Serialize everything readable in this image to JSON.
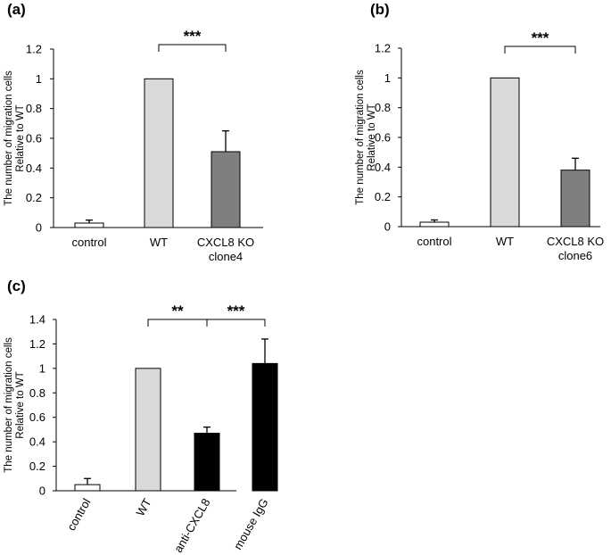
{
  "chart_data": [
    {
      "type": "bar",
      "panel_label": "(a)",
      "ylabel": [
        "The number of migration cells",
        "Relative to WT"
      ],
      "ylim": [
        0,
        1.2
      ],
      "yticks": [
        0,
        0.2,
        0.4,
        0.6,
        0.8,
        1,
        1.2
      ],
      "ytick_labels": [
        "0",
        "0.2",
        "0.4",
        "0.6",
        "0.8",
        "1",
        "1.2"
      ],
      "categories": [
        [
          "control"
        ],
        [
          "WT"
        ],
        [
          "CXCL8 KO",
          "clone4"
        ]
      ],
      "values": [
        0.03,
        1.0,
        0.51
      ],
      "errors": [
        0.02,
        0,
        0.14
      ],
      "bar_colors": [
        "#ffffff",
        "#d9d9d9",
        "#7f7f7f"
      ],
      "significance": [
        {
          "from": 1,
          "to": 2,
          "label": "***"
        }
      ]
    },
    {
      "type": "bar",
      "panel_label": "(b)",
      "ylabel": [
        "The number of migration cells",
        "Relative to WT"
      ],
      "ylim": [
        0,
        1.2
      ],
      "yticks": [
        0,
        0.2,
        0.4,
        0.6,
        0.8,
        1,
        1.2
      ],
      "ytick_labels": [
        "0",
        "0.2",
        "0.4",
        "0.6",
        "0.8",
        "1",
        "1.2"
      ],
      "categories": [
        [
          "control"
        ],
        [
          "WT"
        ],
        [
          "CXCL8 KO",
          "clone6"
        ]
      ],
      "values": [
        0.03,
        1.0,
        0.38
      ],
      "errors": [
        0.015,
        0,
        0.08
      ],
      "bar_colors": [
        "#ffffff",
        "#d9d9d9",
        "#7f7f7f"
      ],
      "significance": [
        {
          "from": 1,
          "to": 2,
          "label": "***"
        }
      ]
    },
    {
      "type": "bar",
      "panel_label": "(c)",
      "ylabel": [
        "The number of migration cells",
        "Relative to WT"
      ],
      "ylim": [
        0,
        1.4
      ],
      "yticks": [
        0,
        0.2,
        0.4,
        0.6,
        0.8,
        1,
        1.2,
        1.4
      ],
      "ytick_labels": [
        "0",
        "0.2",
        "0.4",
        "0.6",
        "0.8",
        "1",
        "1.2",
        "1.4"
      ],
      "categories": [
        [
          "control"
        ],
        [
          "WT"
        ],
        [
          "anti-CXCL8"
        ],
        [
          "mouse IgG"
        ]
      ],
      "rotate_labels": true,
      "values": [
        0.05,
        1.0,
        0.47,
        1.04
      ],
      "errors": [
        0.05,
        0,
        0.05,
        0.2
      ],
      "bar_colors": [
        "#ffffff",
        "#d9d9d9",
        "#000000",
        "#000000"
      ],
      "significance": [
        {
          "from": 1,
          "to": 2,
          "label": "**"
        },
        {
          "from": 2,
          "to": 3,
          "label": "***"
        }
      ]
    }
  ]
}
